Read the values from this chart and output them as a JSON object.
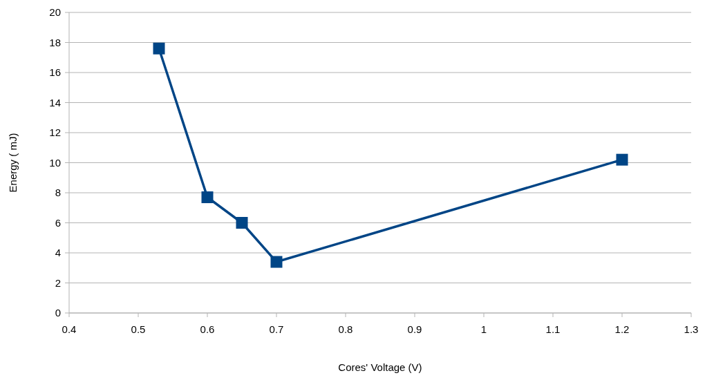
{
  "chart_data": {
    "type": "line",
    "xlabel": "Cores' Voltage (V)",
    "ylabel": "Energy ( mJ)",
    "x": [
      0.53,
      0.6,
      0.65,
      0.7,
      1.2
    ],
    "series": [
      {
        "color": "#004586",
        "values": [
          17.6,
          7.7,
          6.0,
          3.4,
          10.2
        ]
      }
    ],
    "xlim": [
      0.4,
      1.3
    ],
    "xticks": [
      0.4,
      0.5,
      0.6,
      0.7,
      0.8,
      0.9,
      1,
      1.1,
      1.2,
      1.3
    ],
    "ylim": [
      0,
      20
    ],
    "yticks": [
      0,
      2,
      4,
      6,
      8,
      10,
      12,
      14,
      16,
      18,
      20
    ],
    "grid": "y",
    "marker": "square",
    "line_style": "solid"
  }
}
